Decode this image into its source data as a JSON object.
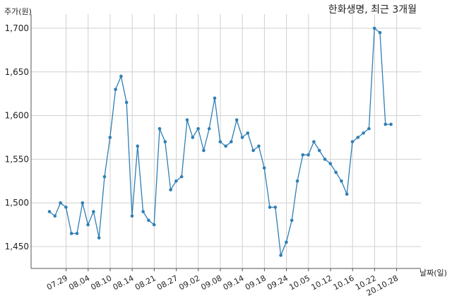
{
  "chart_data": {
    "type": "line",
    "title": "한화생명, 최근 3개월",
    "ylabel": "주가(원)",
    "xlabel": "날짜(일)",
    "ylim": [
      1425,
      1710
    ],
    "yticks": [
      1450,
      1500,
      1550,
      1600,
      1650,
      1700
    ],
    "ytick_labels": [
      "1,450",
      "1,500",
      "1,550",
      "1,600",
      "1,650",
      "1,700"
    ],
    "xtick_labels": [
      "07.29",
      "08.04",
      "08.10",
      "08.14",
      "08.21",
      "08.27",
      "09.02",
      "09.08",
      "09.14",
      "09.18",
      "09.24",
      "10.05",
      "10.12",
      "10.16",
      "10.22",
      "20.10.28"
    ],
    "xtick_index": [
      2,
      6,
      10,
      14,
      18,
      22,
      26,
      30,
      34,
      38,
      42,
      46,
      50,
      54,
      58,
      62
    ],
    "grid": true,
    "line_color": "#2f7fb5",
    "series": [
      {
        "name": "",
        "values": [
          1490,
          1485,
          1500,
          1495,
          1465,
          1465,
          1500,
          1475,
          1490,
          1460,
          1530,
          1575,
          1630,
          1645,
          1615,
          1485,
          1565,
          1490,
          1480,
          1475,
          1585,
          1570,
          1515,
          1525,
          1530,
          1595,
          1575,
          1585,
          1560,
          1585,
          1620,
          1570,
          1565,
          1570,
          1595,
          1575,
          1580,
          1560,
          1565,
          1540,
          1495,
          1495,
          1440,
          1455,
          1480,
          1525,
          1555,
          1555,
          1570,
          1560,
          1550,
          1545,
          1535,
          1525,
          1510,
          1570,
          1575,
          1580,
          1585,
          1700,
          1695,
          1590,
          1590
        ]
      }
    ]
  }
}
